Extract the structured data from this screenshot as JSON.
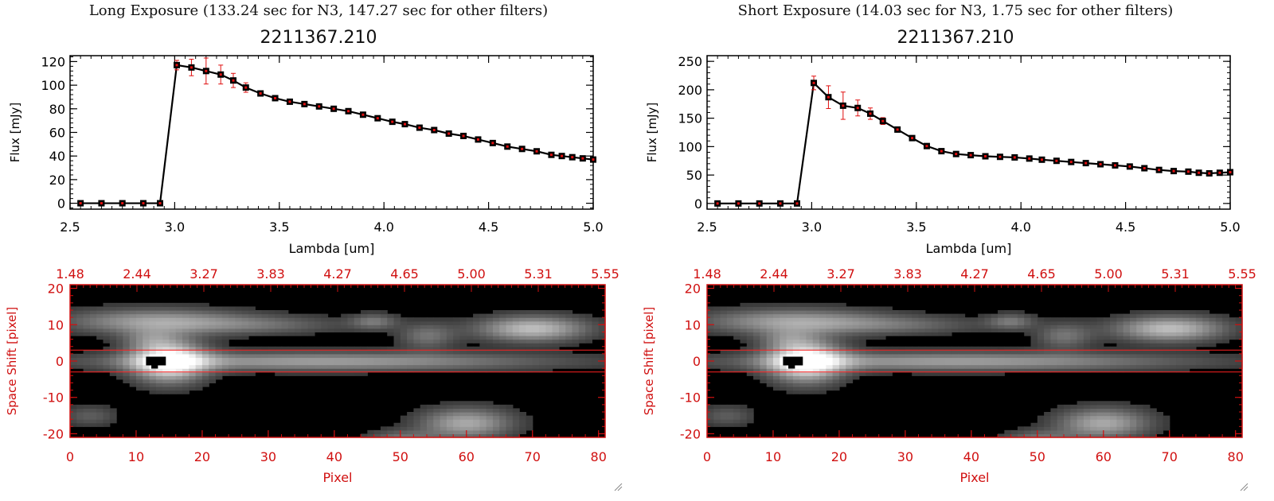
{
  "colors": {
    "accent": "#d01010",
    "errorbar": "#e01010",
    "line": "#000000",
    "overlay": "#ff2020"
  },
  "panels": [
    {
      "exposure_title": "Long Exposure (133.24 sec for N3, 147.27 sec for other filters)",
      "object_title": "2211367.210",
      "chart_data": [
        {
          "type": "line",
          "xlabel": "Lambda [um]",
          "ylabel": "Flux [mJy]",
          "xlim": [
            2.5,
            5.0
          ],
          "ylim": [
            -5,
            125
          ],
          "xticks": [
            2.5,
            3.0,
            3.5,
            4.0,
            4.5,
            5.0
          ],
          "xtick_labels": [
            "2.5",
            "3.0",
            "3.5",
            "4.0",
            "4.5",
            "5.0"
          ],
          "yticks": [
            0,
            20,
            40,
            60,
            80,
            100,
            120
          ],
          "ytick_labels": [
            "0",
            "20",
            "40",
            "60",
            "80",
            "100",
            "120"
          ],
          "series": [
            {
              "x": [
                2.55,
                2.65,
                2.75,
                2.85,
                2.93,
                3.01,
                3.08,
                3.15,
                3.22,
                3.28,
                3.34,
                3.41,
                3.48,
                3.55,
                3.62,
                3.69,
                3.76,
                3.83,
                3.9,
                3.97,
                4.04,
                4.1,
                4.17,
                4.24,
                4.31,
                4.38,
                4.45,
                4.52,
                4.59,
                4.66,
                4.73,
                4.8,
                4.85,
                4.9,
                4.95,
                5.0
              ],
              "y": [
                0,
                0,
                0,
                0,
                0,
                117,
                115,
                112,
                109,
                104,
                98,
                93,
                89,
                86,
                84,
                82,
                80,
                78,
                75,
                72,
                69,
                67,
                64,
                62,
                59,
                57,
                54,
                51,
                48,
                46,
                44,
                41,
                40,
                39,
                38,
                37
              ],
              "yerr": [
                1,
                1,
                1,
                1,
                1,
                4,
                7,
                11,
                8,
                6,
                4,
                2,
                2,
                1,
                1,
                1,
                1,
                1,
                1,
                1,
                1,
                1,
                1,
                1,
                1,
                1,
                1,
                1,
                1,
                1,
                1,
                1,
                1,
                1,
                1,
                1
              ]
            }
          ]
        },
        {
          "type": "heatmap",
          "xlabel": "Pixel",
          "ylabel": "Space Shift [pixel]",
          "xlim": [
            0,
            81
          ],
          "ylim": [
            -21,
            21
          ],
          "xticks": [
            0,
            10,
            20,
            30,
            40,
            50,
            60,
            70,
            80
          ],
          "xtick_labels": [
            "0",
            "10",
            "20",
            "30",
            "40",
            "50",
            "60",
            "70",
            "80"
          ],
          "yticks": [
            -20,
            -10,
            0,
            10,
            20
          ],
          "ytick_labels": [
            "-20",
            "-10",
            "0",
            "10",
            "20"
          ],
          "top_axis_labels": [
            "1.48",
            "2.44",
            "3.27",
            "3.83",
            "4.27",
            "4.65",
            "5.00",
            "5.31",
            "5.55"
          ],
          "aperture_lines": [
            3,
            -3
          ],
          "blobs": [
            {
              "cx": 15,
              "cy": 0,
              "sx": 4,
              "sy": 4,
              "a": 1.0
            },
            {
              "cx": 38,
              "cy": 0,
              "sx": 25,
              "sy": 1.8,
              "a": 0.55
            },
            {
              "cx": 13,
              "cy": 11,
              "sx": 10,
              "sy": 2.5,
              "a": 0.55
            },
            {
              "cx": 30,
              "cy": 10,
              "sx": 9,
              "sy": 1.8,
              "a": 0.25
            },
            {
              "cx": 46,
              "cy": 11,
              "sx": 2.5,
              "sy": 1.5,
              "a": 0.35
            },
            {
              "cx": 54,
              "cy": 7,
              "sx": 3,
              "sy": 2.5,
              "a": 0.35
            },
            {
              "cx": 70,
              "cy": 9,
              "sx": 6,
              "sy": 2.5,
              "a": 0.7
            },
            {
              "cx": 60,
              "cy": -17,
              "sx": 5,
              "sy": 3,
              "a": 0.6
            },
            {
              "cx": 3,
              "cy": -15,
              "sx": 3,
              "sy": 2,
              "a": 0.25
            },
            {
              "cx": 50,
              "cy": -21,
              "sx": 4,
              "sy": 1.5,
              "a": 0.3
            },
            {
              "cx": 12,
              "cy": 6,
              "sx": 3,
              "sy": 2,
              "a": 0.25
            }
          ]
        }
      ]
    },
    {
      "exposure_title": "Short Exposure (14.03 sec for N3, 1.75 sec for other filters)",
      "object_title": "2211367.210",
      "chart_data": [
        {
          "type": "line",
          "xlabel": "Lambda [um]",
          "ylabel": "Flux [mJy]",
          "xlim": [
            2.5,
            5.0
          ],
          "ylim": [
            -10,
            260
          ],
          "xticks": [
            2.5,
            3.0,
            3.5,
            4.0,
            4.5,
            5.0
          ],
          "xtick_labels": [
            "2.5",
            "3.0",
            "3.5",
            "4.0",
            "4.5",
            "5.0"
          ],
          "yticks": [
            0,
            50,
            100,
            150,
            200,
            250
          ],
          "ytick_labels": [
            "0",
            "50",
            "100",
            "150",
            "200",
            "250"
          ],
          "series": [
            {
              "x": [
                2.55,
                2.65,
                2.75,
                2.85,
                2.93,
                3.01,
                3.08,
                3.15,
                3.22,
                3.28,
                3.34,
                3.41,
                3.48,
                3.55,
                3.62,
                3.69,
                3.76,
                3.83,
                3.9,
                3.97,
                4.04,
                4.1,
                4.17,
                4.24,
                4.31,
                4.38,
                4.45,
                4.52,
                4.59,
                4.66,
                4.73,
                4.8,
                4.85,
                4.9,
                4.95,
                5.0
              ],
              "y": [
                0,
                0,
                0,
                0,
                0,
                212,
                187,
                172,
                168,
                158,
                145,
                130,
                115,
                101,
                92,
                87,
                85,
                83,
                82,
                81,
                79,
                77,
                75,
                73,
                71,
                69,
                67,
                65,
                62,
                59,
                57,
                56,
                54,
                53,
                54,
                55
              ],
              "yerr": [
                1,
                1,
                1,
                1,
                1,
                12,
                20,
                24,
                14,
                10,
                6,
                3,
                2,
                2,
                1,
                1,
                1,
                1,
                1,
                1,
                1,
                1,
                1,
                1,
                1,
                1,
                1,
                1,
                1,
                1,
                1,
                1,
                1,
                1,
                1,
                1
              ]
            }
          ]
        },
        {
          "type": "heatmap",
          "xlabel": "Pixel",
          "ylabel": "Space Shift [pixel]",
          "xlim": [
            0,
            81
          ],
          "ylim": [
            -21,
            21
          ],
          "xticks": [
            0,
            10,
            20,
            30,
            40,
            50,
            60,
            70,
            80
          ],
          "xtick_labels": [
            "0",
            "10",
            "20",
            "30",
            "40",
            "50",
            "60",
            "70",
            "80"
          ],
          "yticks": [
            -20,
            -10,
            0,
            10,
            20
          ],
          "ytick_labels": [
            "-20",
            "-10",
            "0",
            "10",
            "20"
          ],
          "top_axis_labels": [
            "1.48",
            "2.44",
            "3.27",
            "3.83",
            "4.27",
            "4.65",
            "5.00",
            "5.31",
            "5.55"
          ],
          "aperture_lines": [
            3,
            -3
          ],
          "blobs": [
            {
              "cx": 15,
              "cy": 0,
              "sx": 4,
              "sy": 4,
              "a": 1.0
            },
            {
              "cx": 38,
              "cy": 0,
              "sx": 25,
              "sy": 1.8,
              "a": 0.55
            },
            {
              "cx": 13,
              "cy": 11,
              "sx": 10,
              "sy": 2.5,
              "a": 0.55
            },
            {
              "cx": 30,
              "cy": 10,
              "sx": 9,
              "sy": 1.8,
              "a": 0.25
            },
            {
              "cx": 46,
              "cy": 11,
              "sx": 2.5,
              "sy": 1.5,
              "a": 0.35
            },
            {
              "cx": 54,
              "cy": 7,
              "sx": 3,
              "sy": 2.5,
              "a": 0.35
            },
            {
              "cx": 70,
              "cy": 9,
              "sx": 6,
              "sy": 2.5,
              "a": 0.7
            },
            {
              "cx": 60,
              "cy": -17,
              "sx": 5,
              "sy": 3,
              "a": 0.6
            },
            {
              "cx": 3,
              "cy": -15,
              "sx": 3,
              "sy": 2,
              "a": 0.25
            },
            {
              "cx": 50,
              "cy": -21,
              "sx": 4,
              "sy": 1.5,
              "a": 0.3
            },
            {
              "cx": 12,
              "cy": 6,
              "sx": 3,
              "sy": 2,
              "a": 0.25
            }
          ]
        }
      ]
    }
  ]
}
